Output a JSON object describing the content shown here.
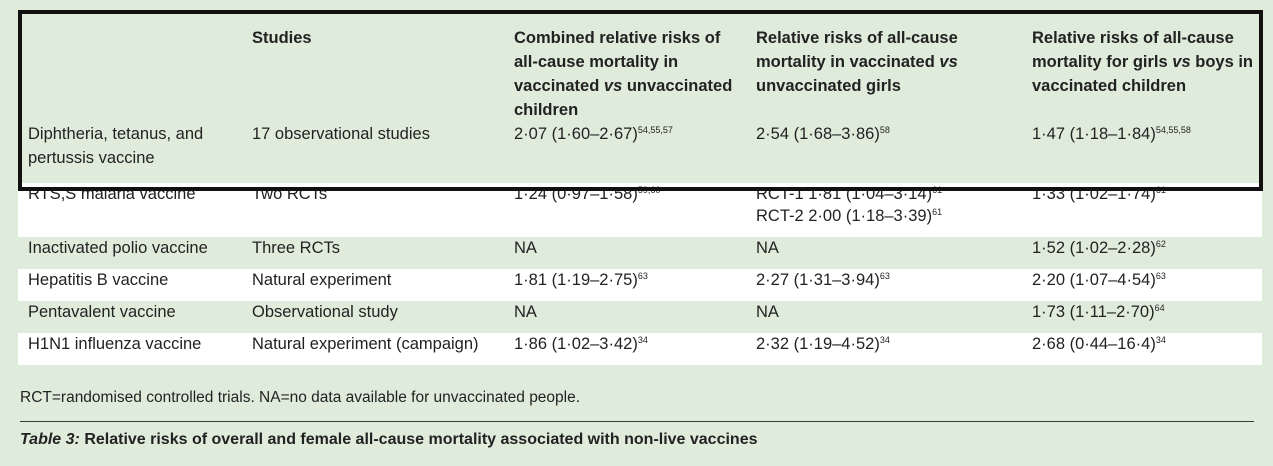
{
  "table": {
    "headers": [
      "",
      "Studies",
      "Combined relative risks of all-cause mortality in vaccinated vs unvaccinated children",
      "Relative risks of all-cause mortality in vaccinated vs unvaccinated girls",
      "Relative risks of all-cause mortality for girls vs boys in vaccinated children"
    ],
    "rows": [
      {
        "vaccine": "Diphtheria, tetanus, and pertussis vaccine",
        "studies": "17 observational studies",
        "combined": "2·07 (1·60–2·67)",
        "combined_ref": "54,55,57",
        "girls": "2·54 (1·68–3·86)",
        "girls_ref": "58",
        "girls_boys": "1·47 (1·18–1·84)",
        "girls_boys_ref": "54,55,58"
      },
      {
        "vaccine": "RTS,S malaria vaccine",
        "studies": "Two RCTs",
        "combined": "1·24 (0·97–1·58)",
        "combined_ref": "59,60",
        "girls": "RCT-1 1·81 (1·04–3·14)",
        "girls_ref": "61",
        "girls2": "RCT-2 2·00 (1·18–3·39)",
        "girls2_ref": "61",
        "girls_boys": "1·33 (1·02–1·74)",
        "girls_boys_ref": "61"
      },
      {
        "vaccine": "Inactivated polio vaccine",
        "studies": "Three RCTs",
        "combined": "NA",
        "combined_ref": "",
        "girls": "NA",
        "girls_ref": "",
        "girls_boys": "1·52 (1·02–2·28)",
        "girls_boys_ref": "62"
      },
      {
        "vaccine": "Hepatitis B vaccine",
        "studies": "Natural experiment",
        "combined": "1·81 (1·19–2·75)",
        "combined_ref": "63",
        "girls": "2·27 (1·31–3·94)",
        "girls_ref": "63",
        "girls_boys": "2·20 (1·07–4·54)",
        "girls_boys_ref": "63"
      },
      {
        "vaccine": "Pentavalent vaccine",
        "studies": "Observational study",
        "combined": "NA",
        "combined_ref": "",
        "girls": "NA",
        "girls_ref": "",
        "girls_boys": "1·73 (1·11–2·70)",
        "girls_boys_ref": "64"
      },
      {
        "vaccine": "H1N1 influenza vaccine",
        "studies": "Natural experiment (campaign)",
        "combined": "1·86 (1·02–3·42)",
        "combined_ref": "34",
        "girls": "2·32 (1·19–4·52)",
        "girls_ref": "34",
        "girls_boys": "2·68 (0·44–16·4)",
        "girls_boys_ref": "34"
      }
    ]
  },
  "footnote": "RCT=randomised controlled trials. NA=no data available for unvaccinated people.",
  "caption": {
    "label": "Table 3:",
    "text": " Relative risks of overall and female all-cause mortality associated with non-live vaccines"
  }
}
